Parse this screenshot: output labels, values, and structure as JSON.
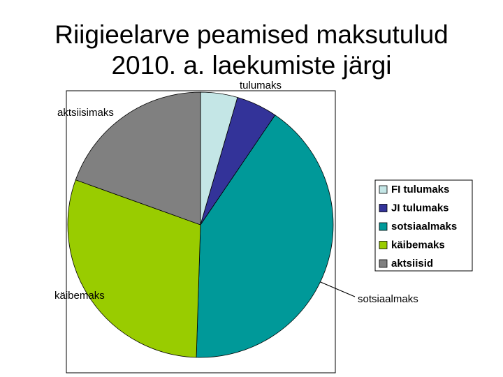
{
  "chart_data": {
    "type": "pie",
    "title": "Riigieelarve peamised maksutulud 2010. a. laekumiste järgi",
    "categories": [
      "FI tulumaks",
      "JI tulumaks",
      "sotsiaalmaks",
      "käibemaks",
      "aktsiisid"
    ],
    "values": [
      4.5,
      5,
      41,
      30,
      19.5
    ],
    "colors": [
      "#c4e6e6",
      "#333399",
      "#009999",
      "#99cc00",
      "#808080"
    ],
    "annotations": [
      "tulumaks",
      "aktsiisimaks",
      "käibemaks",
      "sotsiaalmaks"
    ],
    "legend": "right"
  }
}
